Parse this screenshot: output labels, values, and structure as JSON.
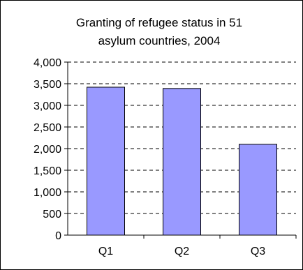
{
  "chart_data": {
    "type": "bar",
    "title": "Granting of refugee status in 51 asylum countries, 2004",
    "title_lines": [
      "Granting of refugee status in 51",
      "asylum countries, 2004"
    ],
    "categories": [
      "Q1",
      "Q2",
      "Q3"
    ],
    "values": [
      3420,
      3390,
      2100
    ],
    "ylim": [
      0,
      4000
    ],
    "yticks": [
      0,
      500,
      1000,
      1500,
      2000,
      2500,
      3000,
      3500,
      4000
    ],
    "ytick_labels": [
      "0",
      "500",
      "1,000",
      "1,500",
      "2,000",
      "2,500",
      "3,000",
      "3,500",
      "4,000"
    ],
    "grid": true,
    "legend": "none",
    "bar_color": "#9999ff"
  }
}
